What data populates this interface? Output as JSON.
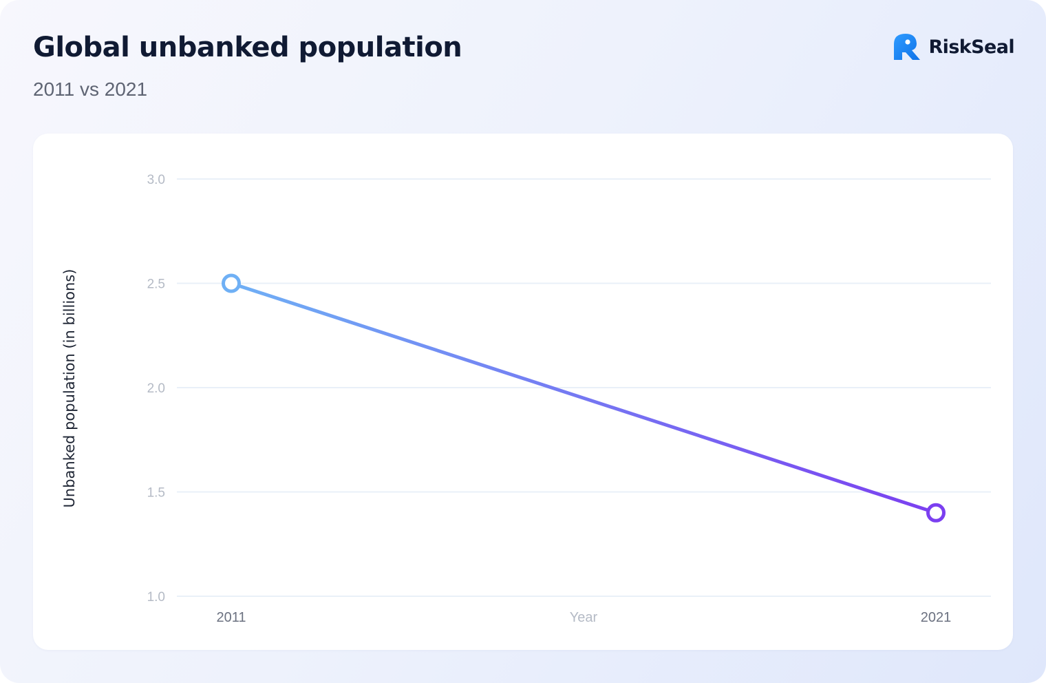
{
  "header": {
    "title": "Global unbanked population",
    "subtitle": "2011 vs 2021"
  },
  "brand": {
    "name": "RiskSeal",
    "icon": "riskseal-logo-icon",
    "icon_color": "#1a8cff"
  },
  "chart_data": {
    "type": "line",
    "x": [
      "2011",
      "2021"
    ],
    "series": [
      {
        "values": [
          2.5,
          1.4
        ]
      }
    ],
    "xlabel": "Year",
    "ylabel": "Unbanked population (in billions)",
    "ylim": [
      1.0,
      3.0
    ],
    "yticks": [
      "1.0",
      "1.5",
      "2.0",
      "2.5",
      "3.0"
    ],
    "grid": true,
    "legend": "none",
    "colors": {
      "line_start": "#6fb0f5",
      "line_end": "#7b3ff0",
      "gridline": "#e9f0f8",
      "tick_label": "#b4bac5",
      "x_tick_label": "#6b7180",
      "xlabel": "#b4bac5"
    }
  }
}
